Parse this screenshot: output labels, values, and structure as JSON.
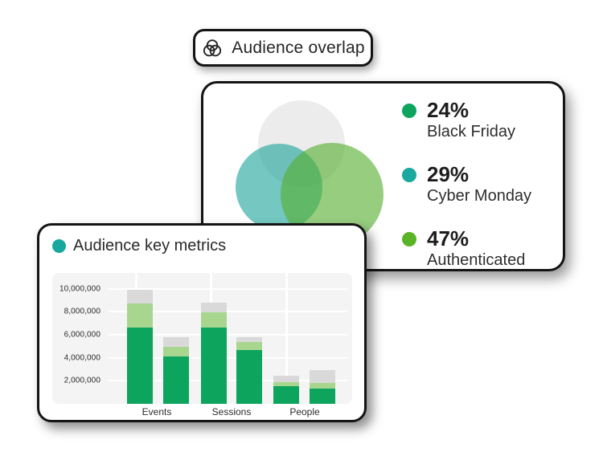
{
  "colors": {
    "ink": "#141414",
    "green": "#0DA45E",
    "teal": "#1AA99E",
    "lime": "#5BB327",
    "light_green": "#A8D68F",
    "segment_gray": "#D9D9D9",
    "plot_bg": "#F4F4F4",
    "title_dot_teal": "#17A79D"
  },
  "badge": {
    "icon": "venn-overlap-icon",
    "label": "Audience overlap"
  },
  "overlap_card": {
    "legend": [
      {
        "value": "24%",
        "label": "Black Friday",
        "dot_color": "#0DA45E"
      },
      {
        "value": "29%",
        "label": "Cyber Monday",
        "dot_color": "#1AA99E"
      },
      {
        "value": "47%",
        "label": "Authenticated",
        "dot_color": "#5BB327"
      }
    ]
  },
  "metrics_card": {
    "title": "Audience key metrics",
    "title_dot_color": "#17A79D"
  },
  "chart_data": [
    {
      "type": "venn",
      "title": "Audience overlap",
      "sets": [
        {
          "label": "Black Friday",
          "value_pct": 24
        },
        {
          "label": "Cyber Monday",
          "value_pct": 29
        },
        {
          "label": "Authenticated",
          "value_pct": 47
        }
      ],
      "circles": [
        {
          "name": "top-gray-circle",
          "color": "#ECECEC"
        },
        {
          "name": "left-teal-circle",
          "color": "rgba(23,163,152,0.60)"
        },
        {
          "name": "right-green-circle",
          "color": "rgba(86,174,49,0.62)"
        }
      ],
      "legend_position": "right"
    },
    {
      "type": "bar",
      "stacked": true,
      "title": "Audience key metrics",
      "categories": [
        "Events",
        "Sessions",
        "People"
      ],
      "bars_per_category": 2,
      "segment_colors": [
        "#0DA45E",
        "#A8D68F",
        "#D9D9D9"
      ],
      "bars": [
        {
          "category": "Events",
          "position": 1,
          "segments": [
            6600000,
            2100000,
            1200000
          ]
        },
        {
          "category": "Events",
          "position": 2,
          "segments": [
            4100000,
            850000,
            850000
          ]
        },
        {
          "category": "Sessions",
          "position": 1,
          "segments": [
            6600000,
            1350000,
            800000
          ]
        },
        {
          "category": "Sessions",
          "position": 2,
          "segments": [
            4700000,
            650000,
            450000
          ]
        },
        {
          "category": "People",
          "position": 1,
          "segments": [
            1550000,
            350000,
            550000
          ]
        },
        {
          "category": "People",
          "position": 2,
          "segments": [
            1350000,
            450000,
            1150000
          ]
        }
      ],
      "yticks": [
        10000000,
        8000000,
        6000000,
        4000000,
        2000000
      ],
      "ytick_labels": [
        "10,000,000",
        "8,000,000",
        "6,000,000",
        "4,000,000",
        "2,000,000"
      ],
      "ylim": [
        0,
        11350000
      ],
      "xlabel": "",
      "ylabel": "",
      "grid": true,
      "legend_position": "none"
    }
  ]
}
